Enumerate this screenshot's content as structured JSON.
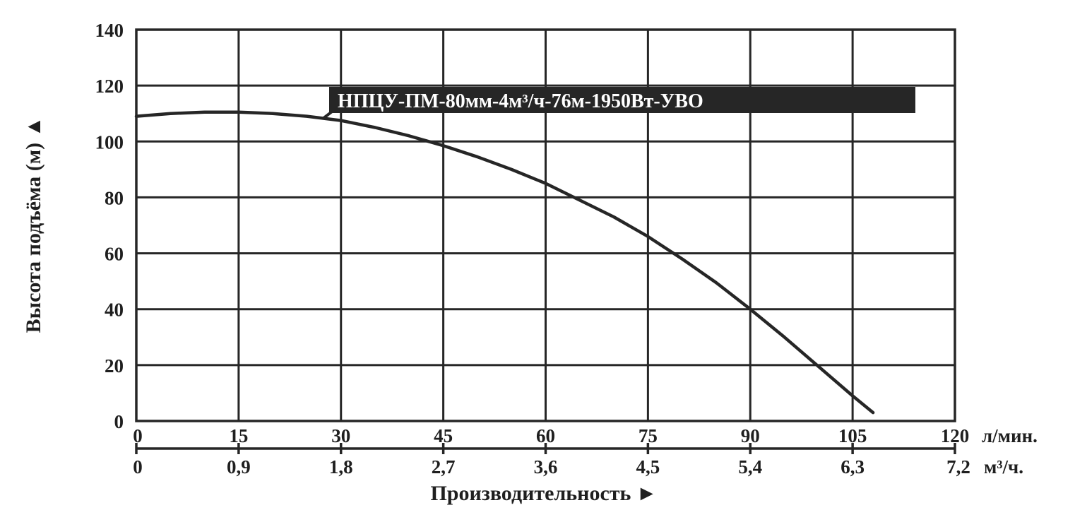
{
  "chart_data": {
    "type": "line",
    "title": "",
    "ylabel": "Высота подъёма (м) ▲",
    "xlabel": "Производительность ►",
    "ylim": [
      0,
      140
    ],
    "xlim": [
      0,
      120
    ],
    "y_ticks": [
      "0",
      "20",
      "40",
      "60",
      "80",
      "100",
      "120",
      "140"
    ],
    "x_ticks_primary": [
      "0",
      "15",
      "30",
      "45",
      "60",
      "75",
      "90",
      "105",
      "120"
    ],
    "x_unit_primary": "л/мин.",
    "x_ticks_secondary": [
      "0",
      "0,9",
      "1,8",
      "2,7",
      "3,6",
      "4,5",
      "5,4",
      "6,3",
      "7,2"
    ],
    "x_unit_secondary": "м³/ч.",
    "grid": true,
    "series": [
      {
        "name": "НПЦУ-ПМ-80мм-4м³/ч-76м-1950Вт-УВО",
        "x": [
          0,
          5,
          10,
          15,
          20,
          25,
          30,
          35,
          40,
          45,
          50,
          55,
          60,
          65,
          70,
          75,
          80,
          85,
          90,
          95,
          100,
          105,
          108
        ],
        "y": [
          109,
          110,
          110.5,
          110.5,
          110,
          109,
          107.5,
          105,
          102,
          98.5,
          94.5,
          90,
          85,
          79,
          73,
          66,
          58,
          49.5,
          40,
          30,
          19.5,
          9,
          3
        ]
      }
    ],
    "colors": {
      "line": "#262626",
      "grid": "#262626",
      "label_bg": "#262626",
      "text": "#1f1f1f"
    }
  }
}
